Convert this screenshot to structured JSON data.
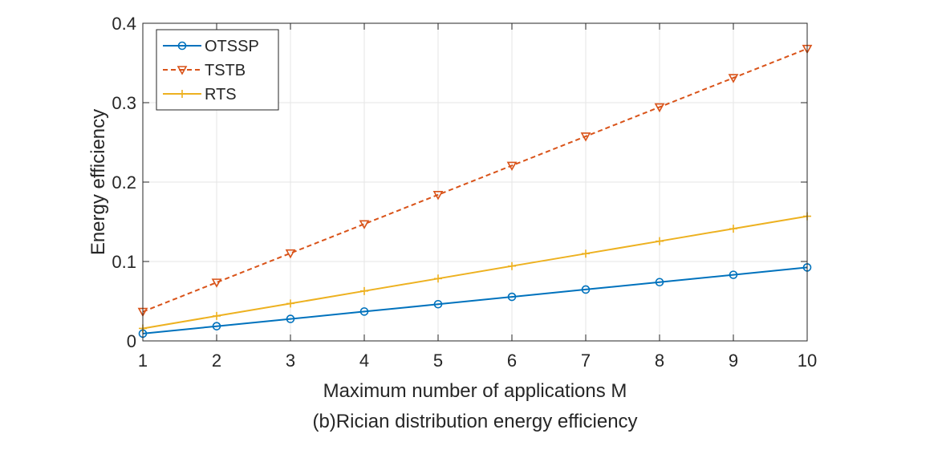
{
  "chart_data": {
    "type": "line",
    "title": "",
    "caption": "(b)Rician distribution energy efficiency",
    "xlabel": "Maximum number of applications M",
    "ylabel": "Energy efficiency",
    "x": [
      1,
      2,
      3,
      4,
      5,
      6,
      7,
      8,
      9,
      10
    ],
    "xlim": [
      1,
      10
    ],
    "ylim": [
      0,
      0.4
    ],
    "xticks": [
      1,
      2,
      3,
      4,
      5,
      6,
      7,
      8,
      9,
      10
    ],
    "yticks": [
      0,
      0.1,
      0.2,
      0.3,
      0.4
    ],
    "ytick_labels": [
      "0",
      "0.1",
      "0.2",
      "0.3",
      "0.4"
    ],
    "grid": true,
    "legend_position": "top-left",
    "series": [
      {
        "name": "OTSSP",
        "values": [
          0.0092,
          0.0185,
          0.0277,
          0.037,
          0.0462,
          0.0555,
          0.0647,
          0.074,
          0.0832,
          0.0925
        ],
        "color": "#0072BD",
        "line_style": "solid",
        "marker": "circle"
      },
      {
        "name": "TSTB",
        "values": [
          0.0368,
          0.0736,
          0.1104,
          0.1472,
          0.184,
          0.2208,
          0.2576,
          0.2944,
          0.3312,
          0.368
        ],
        "color": "#D95319",
        "line_style": "dashed",
        "marker": "triangle-down"
      },
      {
        "name": "RTS",
        "values": [
          0.0157,
          0.0314,
          0.0471,
          0.0628,
          0.0785,
          0.0942,
          0.1099,
          0.1256,
          0.1413,
          0.157
        ],
        "color": "#EDB120",
        "line_style": "solid",
        "marker": "plus"
      }
    ]
  }
}
